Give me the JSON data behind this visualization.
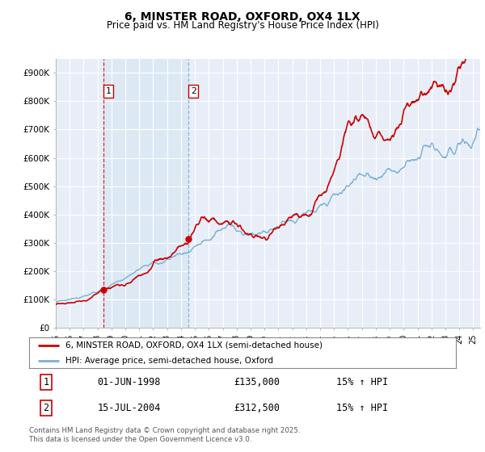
{
  "title": "6, MINSTER ROAD, OXFORD, OX4 1LX",
  "subtitle": "Price paid vs. HM Land Registry's House Price Index (HPI)",
  "ylim": [
    0,
    950000
  ],
  "yticks": [
    0,
    100000,
    200000,
    300000,
    400000,
    500000,
    600000,
    700000,
    800000,
    900000
  ],
  "ytick_labels": [
    "£0",
    "£100K",
    "£200K",
    "£300K",
    "£400K",
    "£500K",
    "£600K",
    "£700K",
    "£800K",
    "£900K"
  ],
  "red_color": "#cc0000",
  "blue_color": "#7ab0d4",
  "shade_color": "#dce8f5",
  "bg_color": "#e8eef8",
  "grid_color": "#ffffff",
  "purchase1_year": 1998.42,
  "purchase1_price": 135000,
  "purchase2_year": 2004.54,
  "purchase2_price": 312500,
  "purchase1_date": "01-JUN-1998",
  "purchase1_hpi": "15% ↑ HPI",
  "purchase2_date": "15-JUL-2004",
  "purchase2_hpi": "15% ↑ HPI",
  "legend_red": "6, MINSTER ROAD, OXFORD, OX4 1LX (semi-detached house)",
  "legend_blue": "HPI: Average price, semi-detached house, Oxford",
  "footnote": "Contains HM Land Registry data © Crown copyright and database right 2025.\nThis data is licensed under the Open Government Licence v3.0.",
  "xstart": 1995.0,
  "xend": 2025.5
}
